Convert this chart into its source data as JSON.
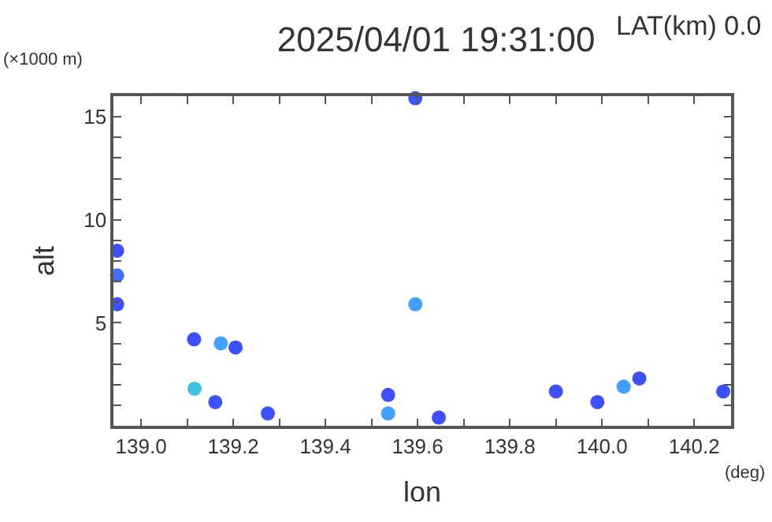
{
  "chart_data": {
    "type": "scatter",
    "title": "2025/04/01 19:31:00",
    "xlabel": "lon",
    "ylabel": "alt",
    "annotations": [
      "LAT(km) 0.0",
      "(×1000 m)",
      "(deg)"
    ],
    "x": [
      138.948,
      138.948,
      138.948,
      139.595,
      139.595,
      139.173,
      139.115,
      139.205,
      139.116,
      139.161,
      139.275,
      139.536,
      139.536,
      139.646,
      139.9,
      139.99,
      140.047,
      140.081,
      140.263
    ],
    "values": [
      8.5,
      7.3,
      5.9,
      5.9,
      15.9,
      4.0,
      4.2,
      3.8,
      1.8,
      1.15,
      0.6,
      1.5,
      0.6,
      0.4,
      1.67,
      1.15,
      1.9,
      2.3,
      1.67
    ],
    "colors": [
      "#3c50ff",
      "#4070ff",
      "#3c50ff",
      "#40a0ff",
      "#3c50ff",
      "#40a0ff",
      "#3c50ff",
      "#3c50ff",
      "#40c0e0",
      "#3c50ff",
      "#3c50ff",
      "#3c50ff",
      "#40a0ff",
      "#3c50ff",
      "#3c50ff",
      "#3c50ff",
      "#40a0ff",
      "#3c50ff",
      "#3c50ff"
    ],
    "marker": "circle",
    "xlim": [
      138.94,
      140.28
    ],
    "ylim": [
      0,
      16
    ],
    "xticks": [
      {
        "value": 139,
        "label": "139.0"
      },
      {
        "value": 139.1,
        "label": null
      },
      {
        "value": 139.2,
        "label": "139.2"
      },
      {
        "value": 139.3,
        "label": null
      },
      {
        "value": 139.4,
        "label": "139.4"
      },
      {
        "value": 139.5,
        "label": null
      },
      {
        "value": 139.6,
        "label": "139.6"
      },
      {
        "value": 139.7,
        "label": null
      },
      {
        "value": 139.8,
        "label": "139.8"
      },
      {
        "value": 139.9,
        "label": null
      },
      {
        "value": 140,
        "label": "140.0"
      },
      {
        "value": 140.1,
        "label": null
      },
      {
        "value": 140.2,
        "label": "140.2"
      }
    ],
    "yticks": [
      {
        "value": 1,
        "label": null
      },
      {
        "value": 2,
        "label": null
      },
      {
        "value": 3,
        "label": null
      },
      {
        "value": 4,
        "label": null
      },
      5,
      {
        "value": 6,
        "label": null
      },
      {
        "value": 7,
        "label": null
      },
      {
        "value": 8,
        "label": null
      },
      {
        "value": 9,
        "label": null
      },
      10,
      {
        "value": 11,
        "label": null
      },
      {
        "value": 12,
        "label": null
      },
      {
        "value": 13,
        "label": null
      },
      {
        "value": 14,
        "label": null
      },
      15,
      {
        "value": 16,
        "label": null
      }
    ],
    "tick_labels": "xy"
  }
}
